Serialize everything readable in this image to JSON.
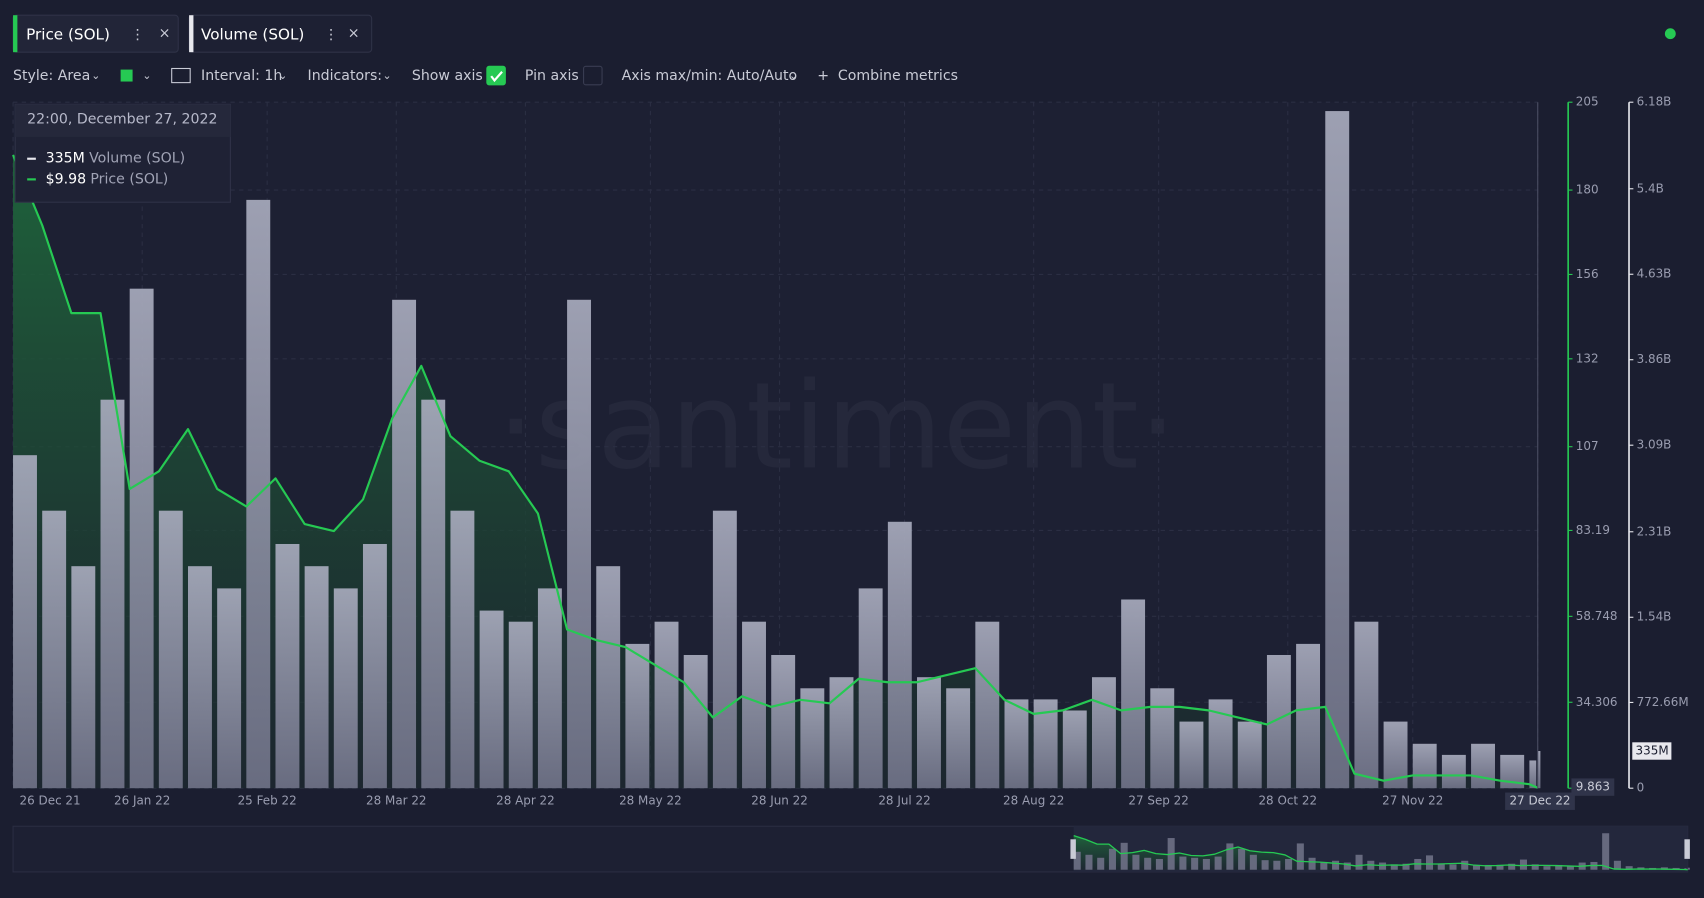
{
  "toolbar": {
    "style": "Style: Area",
    "interval": "Interval: 1h",
    "indicators": "Indicators:",
    "show_axis": {
      "label": "Show axis",
      "checked": true
    },
    "pin_axis": {
      "label": "Pin axis",
      "checked": false
    },
    "axis_minmax": "Axis max/min: Auto/Auto",
    "combine": "Combine metrics"
  },
  "chart_data": {
    "type": "area",
    "watermark": "·santiment·",
    "x": [
      "2021-12-26",
      "2022-01-02",
      "2022-01-09",
      "2022-01-16",
      "2022-01-23",
      "2022-01-30",
      "2022-02-06",
      "2022-02-13",
      "2022-02-20",
      "2022-02-27",
      "2022-03-06",
      "2022-03-13",
      "2022-03-20",
      "2022-03-27",
      "2022-04-03",
      "2022-04-10",
      "2022-04-17",
      "2022-04-24",
      "2022-05-01",
      "2022-05-08",
      "2022-05-15",
      "2022-05-22",
      "2022-05-29",
      "2022-06-05",
      "2022-06-12",
      "2022-06-19",
      "2022-06-26",
      "2022-07-03",
      "2022-07-10",
      "2022-07-17",
      "2022-07-24",
      "2022-07-31",
      "2022-08-07",
      "2022-08-14",
      "2022-08-21",
      "2022-08-28",
      "2022-09-04",
      "2022-09-11",
      "2022-09-18",
      "2022-09-25",
      "2022-10-02",
      "2022-10-09",
      "2022-10-16",
      "2022-10-23",
      "2022-10-30",
      "2022-11-06",
      "2022-11-13",
      "2022-11-20",
      "2022-11-27",
      "2022-12-04",
      "2022-12-11",
      "2022-12-18",
      "2022-12-25",
      "2022-12-27"
    ],
    "xlim": [
      "2021-12-26",
      "2022-12-27"
    ],
    "xticks": [
      {
        "value": "2021-12-26",
        "label": "26 Dec 21"
      },
      {
        "value": "2022-01-26",
        "label": "26 Jan 22"
      },
      {
        "value": "2022-02-25",
        "label": "25 Feb 22"
      },
      {
        "value": "2022-03-28",
        "label": "28 Mar 22"
      },
      {
        "value": "2022-04-28",
        "label": "28 Apr 22"
      },
      {
        "value": "2022-05-28",
        "label": "28 May 22"
      },
      {
        "value": "2022-06-28",
        "label": "28 Jun 22"
      },
      {
        "value": "2022-07-28",
        "label": "28 Jul 22"
      },
      {
        "value": "2022-08-28",
        "label": "28 Aug 22"
      },
      {
        "value": "2022-09-27",
        "label": "27 Sep 22"
      },
      {
        "value": "2022-10-28",
        "label": "28 Oct 22"
      },
      {
        "value": "2022-11-27",
        "label": "27 Nov 22"
      },
      {
        "value": "2022-12-27",
        "label": "27 Dec 22"
      }
    ],
    "ylim": [
      9.863,
      205
    ],
    "yticks": [
      205,
      180,
      156,
      132,
      107,
      83.19,
      58.748,
      34.306,
      9.863
    ],
    "y2lim": [
      0,
      6180000000
    ],
    "y2ticks": [
      {
        "value": 6180000000,
        "label": "6.18B"
      },
      {
        "value": 5400000000,
        "label": "5.4B"
      },
      {
        "value": 4630000000,
        "label": "4.63B"
      },
      {
        "value": 3860000000,
        "label": "3.86B"
      },
      {
        "value": 3090000000,
        "label": "3.09B"
      },
      {
        "value": 2310000000,
        "label": "2.31B"
      },
      {
        "value": 1540000000,
        "label": "1.54B"
      },
      {
        "value": 772660000,
        "label": "772.66M"
      },
      0
    ],
    "grid": true,
    "series": [
      {
        "name": "Price (SOL)",
        "color": "#26c953",
        "values": [
          190,
          170,
          145,
          145,
          95,
          100,
          112,
          95,
          90,
          98,
          85,
          83,
          92,
          115,
          130,
          110,
          103,
          100,
          88,
          55,
          52,
          50,
          45,
          40,
          30,
          36,
          33,
          35,
          34,
          41,
          40,
          40,
          42,
          44,
          35,
          31,
          32,
          35,
          32,
          33,
          33,
          32,
          30,
          28,
          32,
          33,
          14,
          12,
          13.5,
          13.5,
          13.5,
          12,
          11,
          9.98
        ]
      },
      {
        "name": "Volume (SOL)",
        "color": "#9fa2b6",
        "axis": "y2",
        "values": [
          3000000000,
          2500000000,
          2000000000,
          3500000000,
          4500000000,
          2500000000,
          2000000000,
          1800000000,
          5300000000,
          2200000000,
          2000000000,
          1800000000,
          2200000000,
          4400000000,
          3500000000,
          2500000000,
          1600000000,
          1500000000,
          1800000000,
          4400000000,
          2000000000,
          1300000000,
          1500000000,
          1200000000,
          2500000000,
          1500000000,
          1200000000,
          900000000,
          1000000000,
          1800000000,
          2400000000,
          1000000000,
          900000000,
          1500000000,
          800000000,
          800000000,
          700000000,
          1000000000,
          1700000000,
          900000000,
          600000000,
          800000000,
          600000000,
          1200000000,
          1300000000,
          6100000000,
          1500000000,
          600000000,
          400000000,
          300000000,
          400000000,
          300000000,
          250000000,
          335000000
        ]
      }
    ],
    "tooltip": {
      "title": "22:00, December 27, 2022",
      "entries": [
        {
          "value": 335000000,
          "label": "335M"
        },
        {
          "value": 9.98,
          "label": "$9.98"
        }
      ]
    }
  }
}
